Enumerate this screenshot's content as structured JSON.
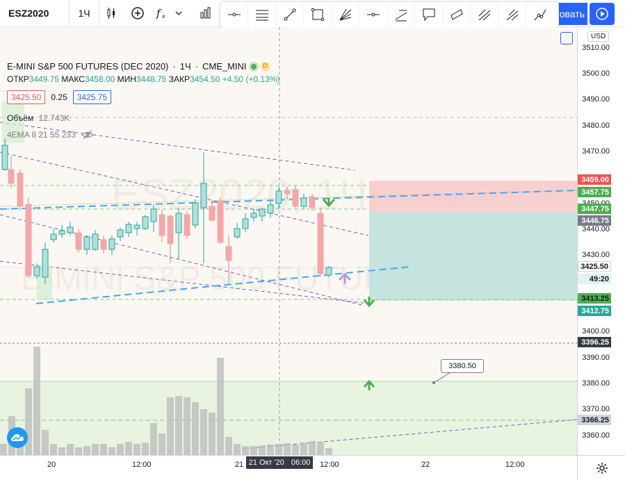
{
  "toolbar": {
    "symbol": "ESZ2020",
    "interval": "1Ч",
    "publish_label": "овать"
  },
  "legend": {
    "title": "E-MINI S&P 500 FUTURES (DEC 2020)",
    "interval": "1Ч",
    "exchange": "CME_MINI",
    "badge": "D",
    "open_label": "ОТКР",
    "open": "3449.75",
    "high_label": "МАКС",
    "high": "3458.00",
    "low_label": "МИН",
    "low": "3448.75",
    "close_label": "ЗАКР",
    "close": "3454.50",
    "change": "+4.50 (+0.13%)",
    "bid": "3425.50",
    "spread": "0.25",
    "ask": "3425.75",
    "volume_label": "Объём",
    "volume": "12.743K",
    "ema_label": "4EMA 8 21 55 233"
  },
  "price_axis": {
    "currency": "USD",
    "ticks": [
      "3510.00",
      "3500.00",
      "3490.00",
      "3480.00",
      "3470.00",
      "3450.00",
      "3440.00",
      "3430.00",
      "3400.00",
      "3390.00",
      "3380.00",
      "3370.00",
      "3360.00"
    ],
    "labels": [
      {
        "text": "3459.00",
        "color": "#ef5350"
      },
      {
        "text": "3457.75",
        "color": "#4caf50"
      },
      {
        "text": "3447.75",
        "color": "#4caf50"
      },
      {
        "text": "3446.75",
        "color": "#787b86"
      },
      {
        "text": "3425.50",
        "color": "#ffffff"
      },
      {
        "text": "49:20",
        "color": "#e0f2f1"
      },
      {
        "text": "3413.25",
        "color": "#4caf50"
      },
      {
        "text": "3412.75",
        "color": "#26a69a"
      },
      {
        "text": "3396.25",
        "color": "#363a45"
      },
      {
        "text": "3366.25",
        "color": "#d1d4dc"
      }
    ]
  },
  "time_axis": {
    "ticks": [
      "20",
      "12:00",
      "21",
      "12:00",
      "22",
      "12:00"
    ],
    "crosshair_date": "21 Окт '20",
    "crosshair_time": "06:00"
  },
  "annotation": {
    "price": "3380.50"
  },
  "colors": {
    "bull": "#26a69a",
    "bear": "#ef5350",
    "bull_fill": "#b2dfdb",
    "bear_fill": "#f4a7a7"
  }
}
